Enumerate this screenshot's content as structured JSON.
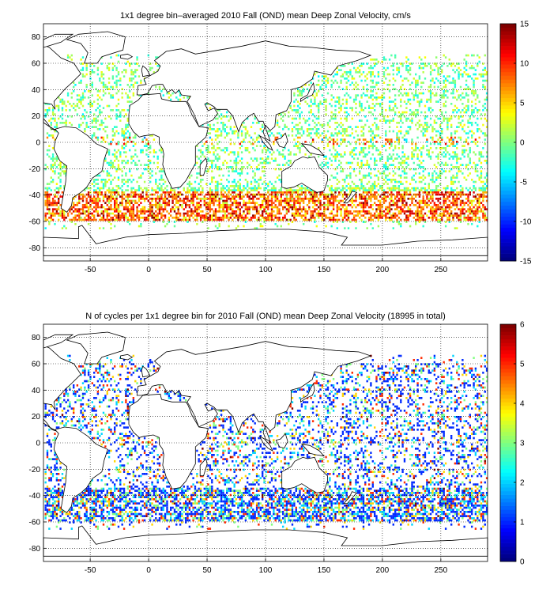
{
  "chart_data": [
    {
      "type": "heatmap",
      "title": "1x1 degree bin–averaged 2010 Fall (OND) mean Deep Zonal Velocity, cm/s",
      "xlabel": "",
      "ylabel": "",
      "xlim": [
        -90,
        290
      ],
      "ylim": [
        -90,
        90
      ],
      "x_ticks": [
        -50,
        0,
        50,
        100,
        150,
        200,
        250
      ],
      "y_ticks": [
        80,
        60,
        40,
        20,
        0,
        -20,
        -40,
        -60,
        -80
      ],
      "grid": true,
      "colorbar": {
        "min": -15,
        "max": 15,
        "ticks": [
          15,
          10,
          5,
          0,
          -5,
          -10,
          -15
        ]
      },
      "colormap": "jet"
    },
    {
      "type": "heatmap",
      "title": "N of cycles per 1x1 degree bin for 2010 Fall (OND) mean Deep Zonal Velocity (18995 in total)",
      "xlabel": "",
      "ylabel": "",
      "xlim": [
        -90,
        290
      ],
      "ylim": [
        -90,
        90
      ],
      "x_ticks": [
        -50,
        0,
        50,
        100,
        150,
        200,
        250
      ],
      "y_ticks": [
        80,
        60,
        40,
        20,
        0,
        -20,
        -40,
        -60,
        -80
      ],
      "grid": true,
      "colorbar": {
        "min": 0,
        "max": 6,
        "ticks": [
          6,
          5,
          4,
          3,
          2,
          1,
          0
        ]
      },
      "colormap": "jet"
    }
  ]
}
